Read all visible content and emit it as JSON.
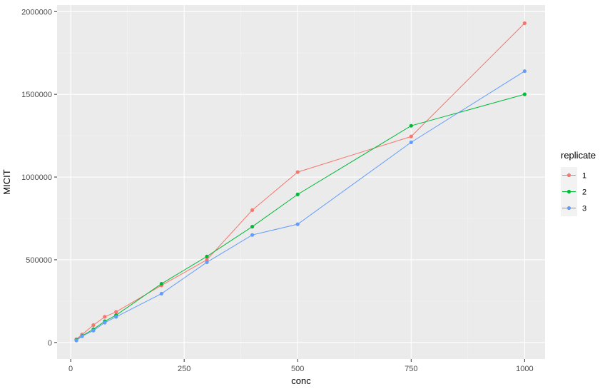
{
  "chart_data": {
    "type": "line",
    "xlabel": "conc",
    "ylabel": "MICIT",
    "xlim": [
      -30,
      1045
    ],
    "ylim": [
      -100000,
      2040000
    ],
    "x_ticks": [
      0,
      250,
      500,
      750,
      1000
    ],
    "x_tick_labels": [
      "0",
      "250",
      "500",
      "750",
      "1000"
    ],
    "y_ticks": [
      0,
      500000,
      1000000,
      1500000,
      2000000
    ],
    "y_tick_labels": [
      "0",
      "500000",
      "1000000",
      "1500000",
      "2000000"
    ],
    "grid": true,
    "legend": {
      "title": "replicate",
      "position": "right"
    },
    "series": [
      {
        "name": "1",
        "color": "#F8766D",
        "x": [
          12.5,
          25,
          50,
          75,
          100,
          200,
          300,
          400,
          500,
          750,
          1000
        ],
        "y": [
          20000,
          48000,
          105000,
          155000,
          185000,
          345000,
          500000,
          800000,
          1030000,
          1245000,
          1930000
        ]
      },
      {
        "name": "2",
        "color": "#00BA38",
        "x": [
          12.5,
          25,
          50,
          75,
          100,
          200,
          300,
          400,
          500,
          750,
          1000
        ],
        "y": [
          15000,
          40000,
          80000,
          128000,
          165000,
          355000,
          520000,
          700000,
          895000,
          1310000,
          1500000
        ]
      },
      {
        "name": "3",
        "color": "#619CFF",
        "x": [
          12.5,
          25,
          50,
          75,
          100,
          200,
          300,
          400,
          500,
          750,
          1000
        ],
        "y": [
          12000,
          38000,
          72000,
          120000,
          155000,
          295000,
          485000,
          650000,
          715000,
          1210000,
          1640000
        ]
      }
    ]
  },
  "colors": {
    "panel_background": "#EBEBEB",
    "grid_major": "#FFFFFF",
    "grid_minor": "#F5F5F5",
    "legend_key_background": "#F2F2F2"
  }
}
